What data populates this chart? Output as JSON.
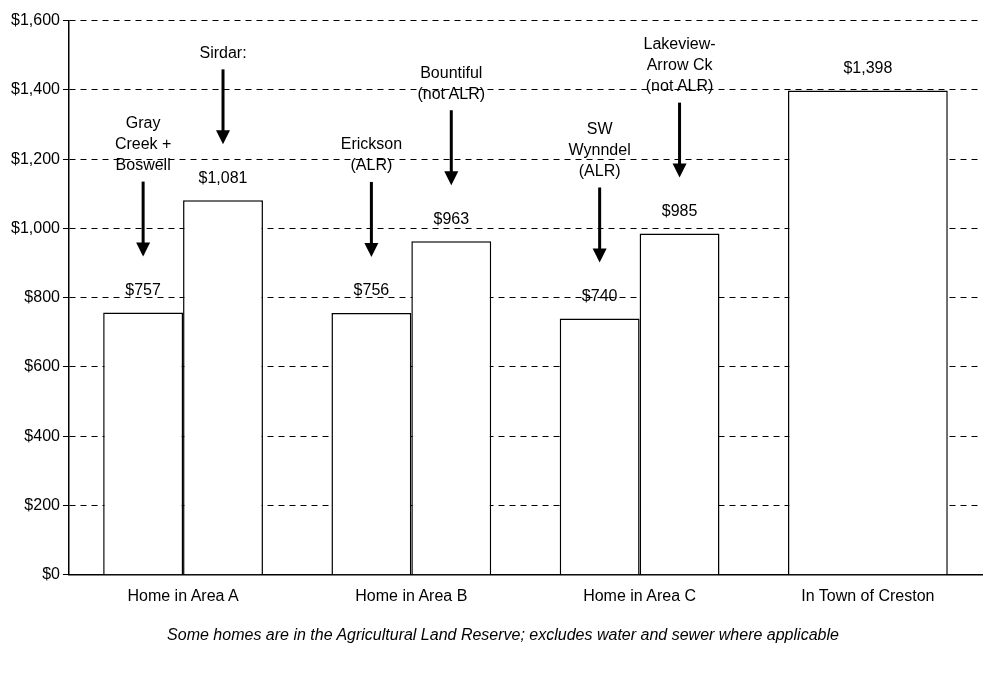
{
  "chart_data": {
    "type": "bar",
    "categories": [
      "Home in Area A",
      "Home in Area B",
      "Home in Area C",
      "In Town of Creston"
    ],
    "series": [
      {
        "color": "#ffffff",
        "values": [
          757,
          756,
          740,
          1398
        ],
        "value_labels": [
          "$757",
          "$756",
          "$740",
          "$1,398"
        ]
      },
      {
        "color": "#ffffff",
        "values": [
          1081,
          963,
          985,
          null
        ],
        "value_labels": [
          "$1,081",
          "$963",
          "$985",
          null
        ]
      }
    ],
    "ylim": [
      0,
      1600
    ],
    "yticks": [
      {
        "value": 0,
        "label": "$0"
      },
      {
        "value": 200,
        "label": "$200"
      },
      {
        "value": 400,
        "label": "$400"
      },
      {
        "value": 600,
        "label": "$600"
      },
      {
        "value": 800,
        "label": "$800"
      },
      {
        "value": 1000,
        "label": "$1,000"
      },
      {
        "value": 1200,
        "label": "$1,200"
      },
      {
        "value": 1400,
        "label": "$1,400"
      },
      {
        "value": 1600,
        "label": "$1,600"
      }
    ],
    "grid": "y",
    "legend": false,
    "annotations": [
      "Gray\nCreek +\nBoswell",
      "Sirdar:",
      "Erickson\n(ALR)",
      "Bountiful\n(not ALR)",
      "SW\nWynndel\n(ALR)",
      "Lakeview-\nArrow Ck\n(not ALR)",
      "Some homes are in the Agricultural Land Reserve; excludes water and sewer where applicable"
    ]
  }
}
